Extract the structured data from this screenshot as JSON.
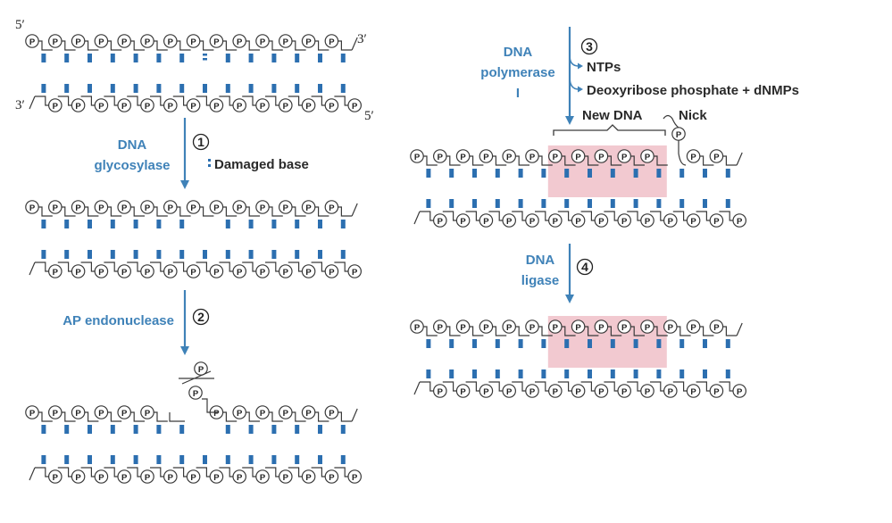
{
  "ends": {
    "five_prime": "5′",
    "three_prime": "3′"
  },
  "phosphate_symbol": "P",
  "steps": [
    {
      "number": "1",
      "enzyme_lines": [
        "DNA",
        "glycosylase"
      ],
      "note": "Damaged base"
    },
    {
      "number": "2",
      "enzyme_lines": [
        "AP endonuclease"
      ]
    },
    {
      "number": "3",
      "enzyme_lines": [
        "DNA",
        "polymerase",
        "I"
      ],
      "inputs": "NTPs",
      "outputs": "Deoxyribose phosphate + dNMPs"
    },
    {
      "number": "4",
      "enzyme_lines": [
        "DNA",
        "ligase"
      ]
    }
  ],
  "labels": {
    "new_dna": "New DNA",
    "nick": "Nick"
  },
  "colors": {
    "accent_blue": "#3f82b8",
    "base_pair": "#2c6fb0",
    "new_dna_highlight": "#f2c9d0",
    "strand": "#3a3a3a"
  }
}
